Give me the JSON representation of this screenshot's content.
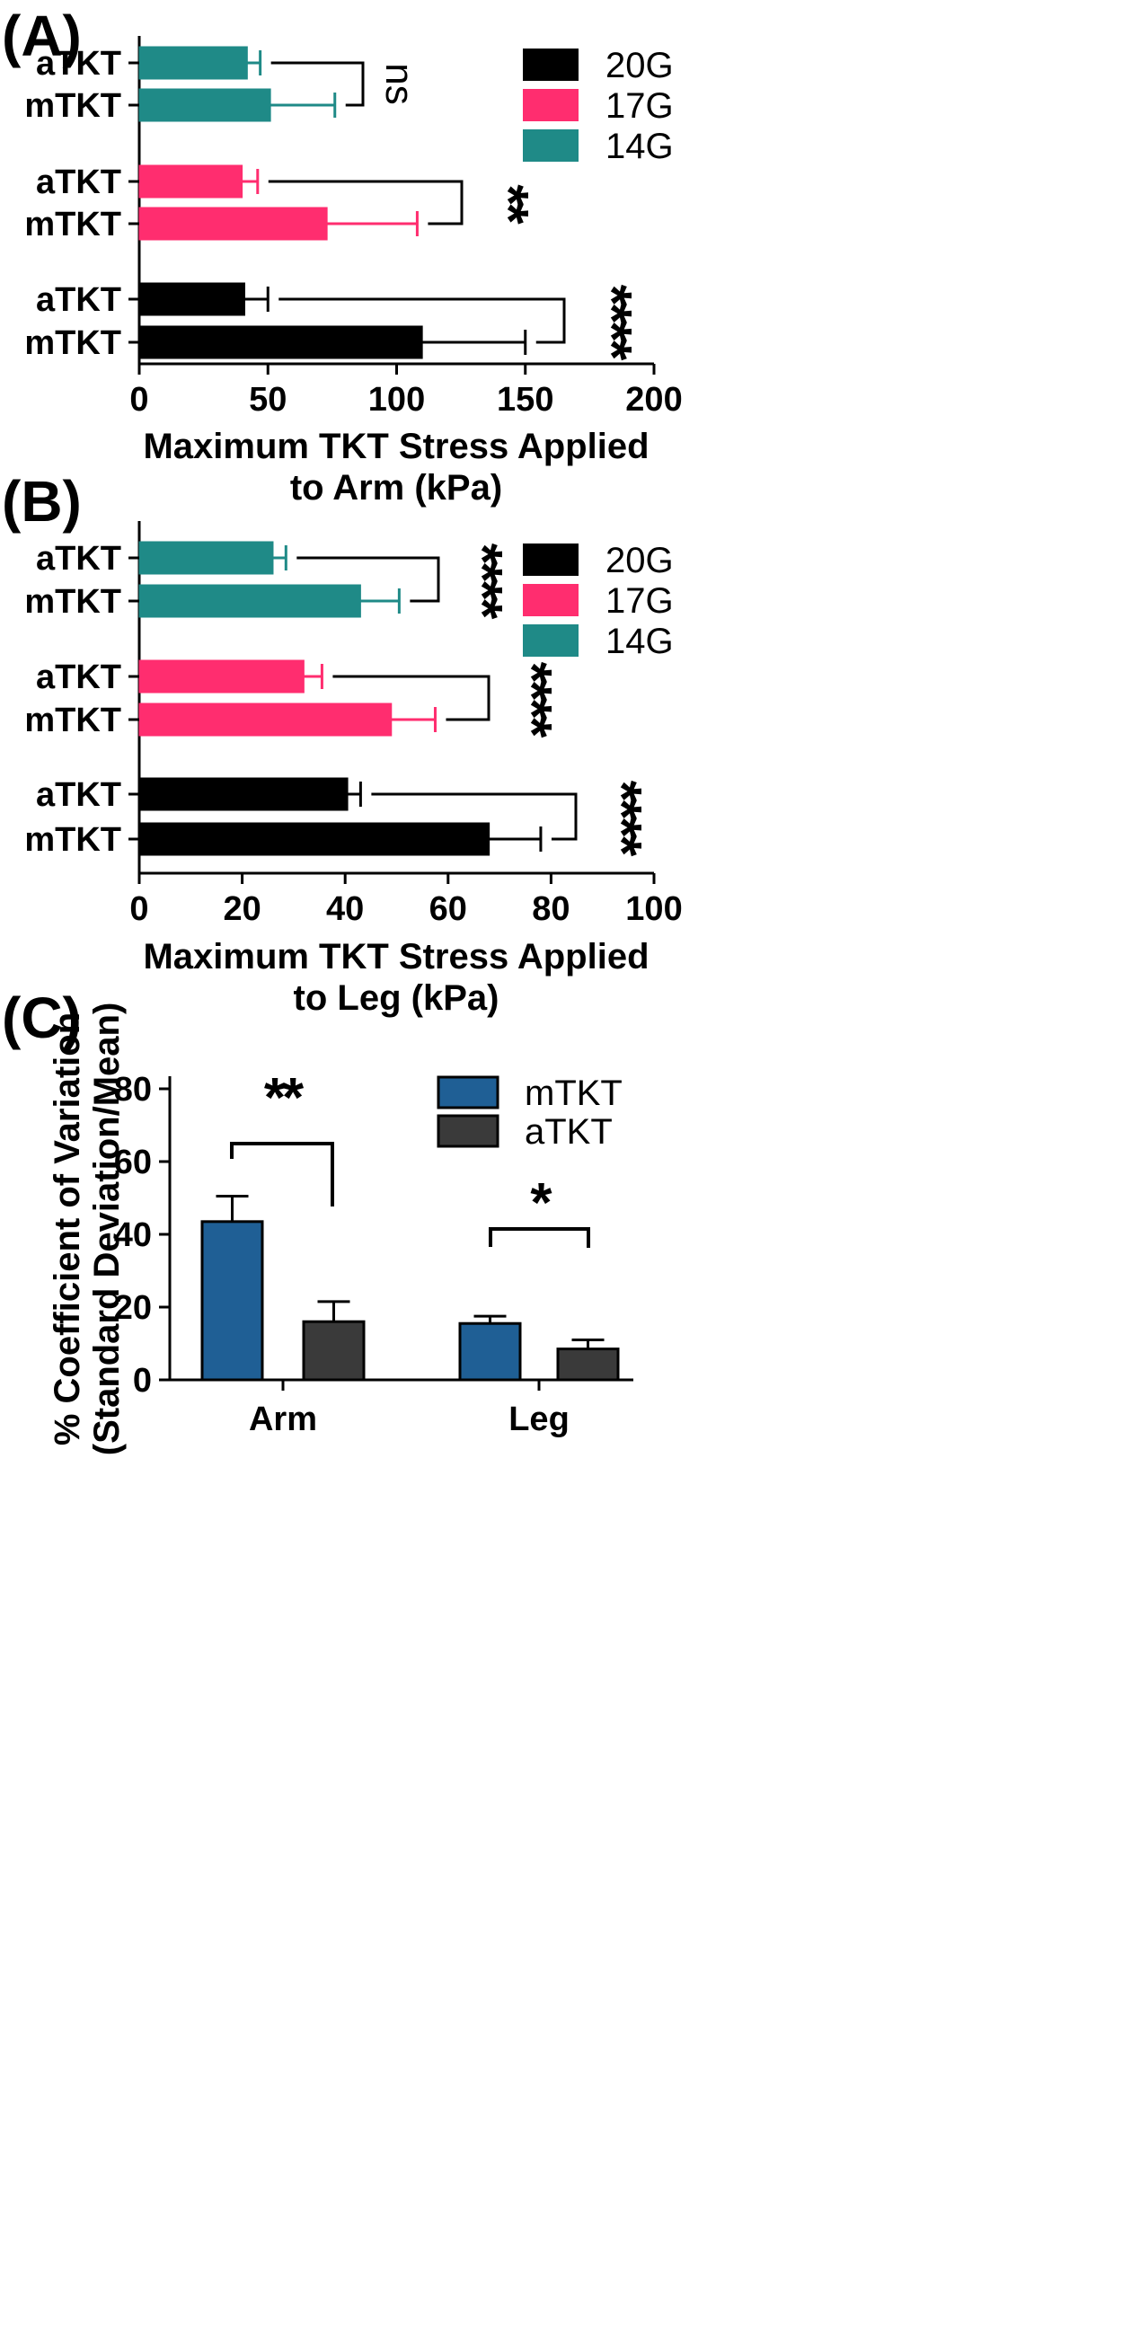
{
  "chart_data": [
    {
      "panel": "(A)",
      "type": "bar",
      "orientation": "horizontal",
      "xlabel_lines": [
        "Maximum  TKT Stress Applied",
        "to Arm  (kPa)"
      ],
      "xlim": [
        0,
        200
      ],
      "xticks": [
        0,
        50,
        100,
        150,
        200
      ],
      "legend": [
        {
          "label": "20G",
          "color": "#000000"
        },
        {
          "label": "17G",
          "color": "#ff2d6f"
        },
        {
          "label": "14G",
          "color": "#1f8a87"
        }
      ],
      "legend_position": "top-right",
      "groups": [
        {
          "gauge": "14G",
          "color": "#1f8a87",
          "significance": "ns",
          "bars": [
            {
              "label": "aTKT",
              "value": 42,
              "error": 5
            },
            {
              "label": "mTKT",
              "value": 51,
              "error": 25
            }
          ]
        },
        {
          "gauge": "17G",
          "color": "#ff2d6f",
          "significance": "**",
          "bars": [
            {
              "label": "aTKT",
              "value": 40,
              "error": 6
            },
            {
              "label": "mTKT",
              "value": 73,
              "error": 35
            }
          ]
        },
        {
          "gauge": "20G",
          "color": "#000000",
          "significance": "****",
          "bars": [
            {
              "label": "aTKT",
              "value": 41,
              "error": 9
            },
            {
              "label": "mTKT",
              "value": 110,
              "error": 40
            }
          ]
        }
      ]
    },
    {
      "panel": "(B)",
      "type": "bar",
      "orientation": "horizontal",
      "xlabel_lines": [
        "Maximum  TKT Stress Applied",
        "to Leg (kPa)"
      ],
      "xlim": [
        0,
        100
      ],
      "xticks": [
        0,
        20,
        40,
        60,
        80,
        100
      ],
      "legend": [
        {
          "label": "20G",
          "color": "#000000"
        },
        {
          "label": "17G",
          "color": "#ff2d6f"
        },
        {
          "label": "14G",
          "color": "#1f8a87"
        }
      ],
      "legend_position": "top-right",
      "groups": [
        {
          "gauge": "14G",
          "color": "#1f8a87",
          "significance": "****",
          "bars": [
            {
              "label": "aTKT",
              "value": 26,
              "error": 2.5
            },
            {
              "label": "mTKT",
              "value": 43,
              "error": 7.5
            }
          ]
        },
        {
          "gauge": "17G",
          "color": "#ff2d6f",
          "significance": "****",
          "bars": [
            {
              "label": "aTKT",
              "value": 32,
              "error": 3.5
            },
            {
              "label": "mTKT",
              "value": 49,
              "error": 8.5
            }
          ]
        },
        {
          "gauge": "20G",
          "color": "#000000",
          "significance": "****",
          "bars": [
            {
              "label": "aTKT",
              "value": 40.5,
              "error": 2.5
            },
            {
              "label": "mTKT",
              "value": 68,
              "error": 10
            }
          ]
        }
      ]
    },
    {
      "panel": "(C)",
      "type": "bar",
      "orientation": "vertical",
      "ylabel_lines": [
        "% Coefficient of  Variation",
        "(Standard Deviation/Mean)"
      ],
      "ylim": [
        0,
        80
      ],
      "yticks": [
        0,
        20,
        40,
        60,
        80
      ],
      "categories": [
        "Arm",
        "Leg"
      ],
      "series": [
        {
          "name": "mTKT",
          "color": "#1f5f95",
          "values": [
            43.5,
            15.5
          ],
          "errors": [
            7,
            2
          ]
        },
        {
          "name": "aTKT",
          "color": "#3a3a3a",
          "values": [
            16,
            8.5
          ],
          "errors": [
            5.5,
            2.5
          ]
        }
      ],
      "significance": [
        "**",
        "*"
      ],
      "legend_position": "top-right"
    }
  ]
}
